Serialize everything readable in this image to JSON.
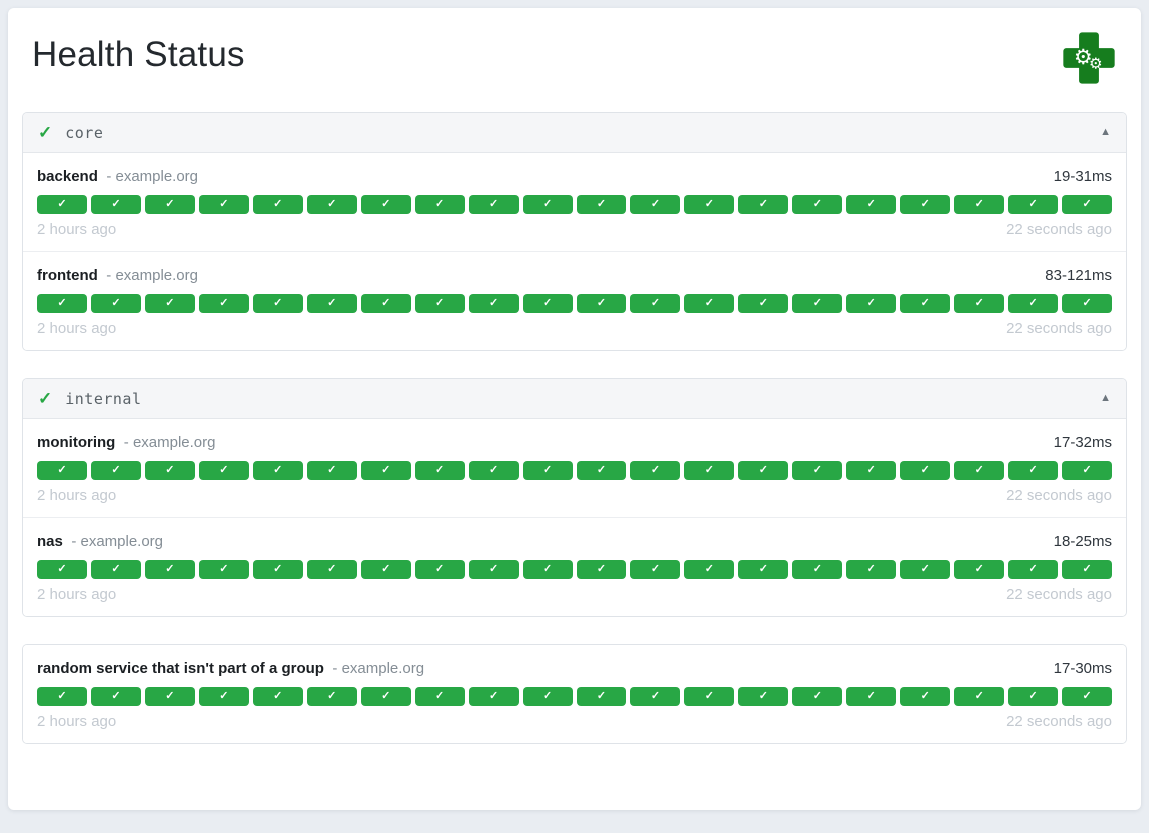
{
  "header": {
    "title": "Health Status",
    "logo_icon": "medical-cross-gears-icon"
  },
  "colors": {
    "success_green": "#28a745",
    "logo_green": "#167d1e",
    "page_background": "#e9edf2",
    "group_header_background": "#f5f6f8"
  },
  "icons": {
    "group_status": "✓",
    "collapse": "▲",
    "result_badge": "✓",
    "gear": "⚙"
  },
  "groups": [
    {
      "name": "core",
      "status_icon": "✓",
      "collapse_icon": "▲",
      "collapsed": false,
      "endpoints": [
        {
          "name": "backend",
          "separator": "-",
          "host": "example.org",
          "response_time": "19-31ms",
          "oldest_result": "2 hours ago",
          "newest_result": "22 seconds ago",
          "results": {
            "count": 20,
            "status": "success",
            "icon": "✓"
          }
        },
        {
          "name": "frontend",
          "separator": "-",
          "host": "example.org",
          "response_time": "83-121ms",
          "oldest_result": "2 hours ago",
          "newest_result": "22 seconds ago",
          "results": {
            "count": 20,
            "status": "success",
            "icon": "✓"
          }
        }
      ]
    },
    {
      "name": "internal",
      "status_icon": "✓",
      "collapse_icon": "▲",
      "collapsed": false,
      "endpoints": [
        {
          "name": "monitoring",
          "separator": "-",
          "host": "example.org",
          "response_time": "17-32ms",
          "oldest_result": "2 hours ago",
          "newest_result": "22 seconds ago",
          "results": {
            "count": 20,
            "status": "success",
            "icon": "✓"
          }
        },
        {
          "name": "nas",
          "separator": "-",
          "host": "example.org",
          "response_time": "18-25ms",
          "oldest_result": "2 hours ago",
          "newest_result": "22 seconds ago",
          "results": {
            "count": 20,
            "status": "success",
            "icon": "✓"
          }
        }
      ]
    },
    {
      "name": null,
      "status_icon": null,
      "collapse_icon": null,
      "collapsed": false,
      "endpoints": [
        {
          "name": "random service that isn't part of a group",
          "separator": "-",
          "host": "example.org",
          "response_time": "17-30ms",
          "oldest_result": "2 hours ago",
          "newest_result": "22 seconds ago",
          "results": {
            "count": 20,
            "status": "success",
            "icon": "✓"
          }
        }
      ]
    }
  ]
}
